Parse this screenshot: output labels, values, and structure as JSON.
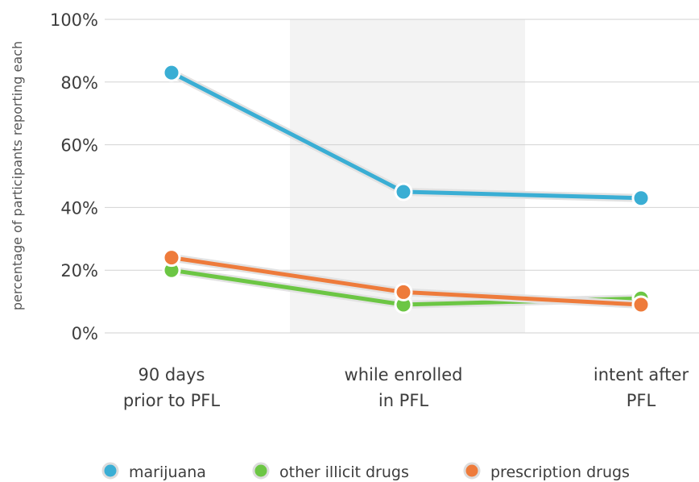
{
  "chart_data": {
    "type": "line",
    "title": "",
    "xlabel": "",
    "ylabel": "percentage of participants reporting each",
    "categories": [
      [
        "90 days",
        "prior to PFL"
      ],
      [
        "while enrolled",
        "in  PFL"
      ],
      [
        "intent after",
        "PFL"
      ]
    ],
    "y_ticks": [
      "0%",
      "20%",
      "40%",
      "60%",
      "80%",
      "100%"
    ],
    "ylim": [
      0,
      100
    ],
    "grid": true,
    "highlighted_category": 1,
    "legend_position": "bottom",
    "series": [
      {
        "name": "marijuana",
        "color": "#3aaed4",
        "values": [
          83,
          45,
          43
        ]
      },
      {
        "name": "other illicit drugs",
        "color": "#6cc644",
        "values": [
          20,
          9,
          11
        ]
      },
      {
        "name": "prescription drugs",
        "color": "#ee7b3b",
        "values": [
          24,
          13,
          9
        ]
      }
    ]
  }
}
